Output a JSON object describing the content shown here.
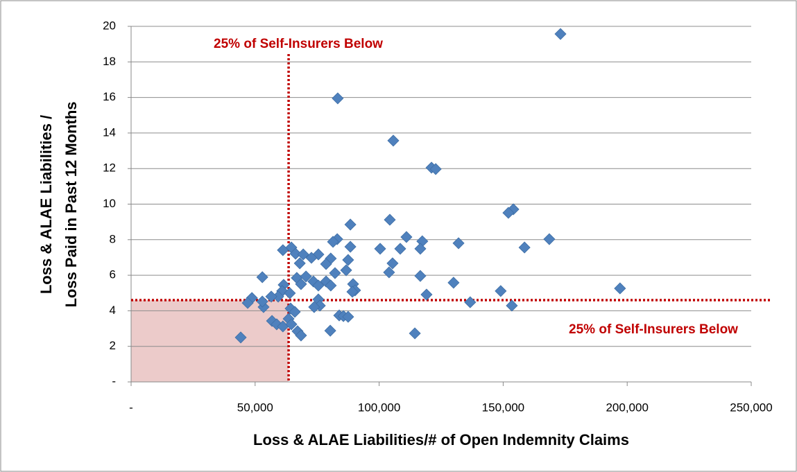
{
  "chart_data": {
    "type": "scatter",
    "x_label": "Loss & ALAE Liabilities/# of Open Indemnity Claims",
    "y_label": [
      "Loss & ALAE Liabilities /",
      "Loss Paid  in Past 12 Months"
    ],
    "annotations": [
      "25% of Self-Insurers Below",
      "25% of Self-Insurers Below"
    ],
    "reference_x": 63500,
    "reference_y": 4.6,
    "reference_color": "#c00000",
    "shade_color": "#e6b9b8",
    "color": "#4f81bd",
    "grid": true,
    "xlim": [
      0,
      250000
    ],
    "ylim": [
      0,
      20
    ],
    "xticks": [
      {
        "value": 0,
        "label": "-"
      },
      {
        "value": 50000,
        "label": "50,000"
      },
      {
        "value": 100000,
        "label": "100,000"
      },
      {
        "value": 150000,
        "label": "150,000"
      },
      {
        "value": 200000,
        "label": "200,000"
      },
      {
        "value": 250000,
        "label": "250,000"
      }
    ],
    "yticks": [
      {
        "value": 0,
        "label": "-"
      },
      2,
      4,
      6,
      8,
      10,
      12,
      14,
      16,
      18,
      20
    ],
    "x": [
      173100,
      83300,
      105700,
      121100,
      122800,
      154100,
      152100,
      104300,
      88400,
      168600,
      83100,
      81400,
      111000,
      117400,
      132000,
      88400,
      158600,
      100400,
      108500,
      116600,
      61200,
      64600,
      66300,
      69400,
      75500,
      72700,
      87500,
      80500,
      78600,
      68000,
      105400,
      104000,
      86700,
      82200,
      116600,
      52900,
      66800,
      70500,
      73500,
      75500,
      78600,
      80500,
      68500,
      89500,
      90300,
      89200,
      130000,
      197100,
      149000,
      61500,
      60900,
      64000,
      119100,
      59300,
      56500,
      48700,
      75500,
      76100,
      73800,
      136700,
      153500,
      53400,
      47000,
      52900,
      64300,
      66000,
      63500,
      56800,
      58700,
      61200,
      64600,
      83900,
      85600,
      87500,
      67100,
      68500,
      80300,
      114400,
      44200
    ],
    "values": [
      19.57,
      15.95,
      13.57,
      12.05,
      11.97,
      9.71,
      9.51,
      9.12,
      8.85,
      8.03,
      8.03,
      7.88,
      8.15,
      7.91,
      7.8,
      7.6,
      7.56,
      7.49,
      7.49,
      7.49,
      7.41,
      7.56,
      7.21,
      7.17,
      7.17,
      6.98,
      6.86,
      6.94,
      6.63,
      6.67,
      6.67,
      6.16,
      6.28,
      6.12,
      5.96,
      5.89,
      5.85,
      5.93,
      5.65,
      5.42,
      5.65,
      5.42,
      5.5,
      5.5,
      5.15,
      5.07,
      5.58,
      5.26,
      5.11,
      5.46,
      5.11,
      4.99,
      4.91,
      4.8,
      4.8,
      4.72,
      4.64,
      4.29,
      4.21,
      4.48,
      4.29,
      4.21,
      4.44,
      4.52,
      4.13,
      3.94,
      3.55,
      3.43,
      3.24,
      3.12,
      3.24,
      3.74,
      3.7,
      3.66,
      2.85,
      2.61,
      2.88,
      2.73,
      2.5
    ]
  }
}
